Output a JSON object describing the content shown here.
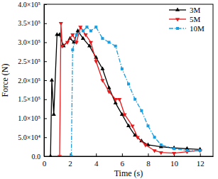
{
  "chart_data": {
    "type": "line",
    "x_label": "Time (s)",
    "y_label": "Force (N)",
    "xlim": [
      0,
      13
    ],
    "ylim": [
      0,
      400000
    ],
    "xticks": [
      0,
      2,
      4,
      6,
      8,
      10,
      12
    ],
    "yticks": [
      {
        "value": 0,
        "label": "0.0"
      },
      {
        "value": 50000,
        "label": "5.0×10⁴"
      },
      {
        "value": 100000,
        "label": "1.0×10⁵"
      },
      {
        "value": 150000,
        "label": "1.5×10⁵"
      },
      {
        "value": 200000,
        "label": "2.0×10⁵"
      },
      {
        "value": 250000,
        "label": "2.5×10⁵"
      },
      {
        "value": 300000,
        "label": "3.0×10⁵"
      },
      {
        "value": 350000,
        "label": "3.5×10⁵"
      },
      {
        "value": 400000,
        "label": "4.0×10⁵"
      }
    ],
    "grid": false,
    "legend": "upper right",
    "series": [
      {
        "name": "3M",
        "color": "#000000",
        "marker": "triangle",
        "line_style": "solid",
        "x": [
          0.5,
          0.6,
          0.75,
          1.0,
          1.2,
          1.5,
          2.0,
          2.3,
          2.6,
          3.0,
          3.5,
          4.0,
          4.5,
          5.0,
          5.5,
          6.0,
          6.5,
          7.0,
          7.5,
          8.0,
          9.0,
          10.0,
          11.0,
          12.0
        ],
        "values": [
          0,
          200000,
          110000,
          320000,
          320000,
          290000,
          310000,
          300000,
          330000,
          310000,
          290000,
          260000,
          230000,
          180000,
          140000,
          110000,
          80000,
          55000,
          40000,
          30000,
          25000,
          22000,
          20000,
          18000
        ]
      },
      {
        "name": "5M",
        "color": "#e8191b",
        "marker": "triangle-down",
        "line_style": "solid",
        "x": [
          1.2,
          1.3,
          1.4,
          1.8,
          2.2,
          2.5,
          2.8,
          3.2,
          3.6,
          4.0,
          4.5,
          5.0,
          5.5,
          5.8,
          6.2,
          6.8,
          7.2,
          7.8,
          8.5,
          9.0,
          10.0,
          11.0,
          12.0
        ],
        "values": [
          0,
          350000,
          290000,
          300000,
          320000,
          300000,
          340000,
          320000,
          300000,
          250000,
          200000,
          170000,
          150000,
          150000,
          110000,
          80000,
          50000,
          30000,
          15000,
          10000,
          8000,
          12000,
          15000
        ]
      },
      {
        "name": "10M",
        "color": "#1a9ee0",
        "marker": "square",
        "line_style": "dash-dot",
        "x": [
          2.1,
          2.2,
          2.5,
          3.0,
          3.3,
          3.6,
          4.0,
          4.5,
          5.0,
          5.5,
          6.0,
          6.5,
          7.0,
          7.5,
          8.0,
          8.5,
          9.0,
          10.0,
          11.0,
          12.0
        ],
        "values": [
          0,
          280000,
          320000,
          330000,
          340000,
          330000,
          340000,
          310000,
          300000,
          290000,
          230000,
          190000,
          150000,
          120000,
          80000,
          50000,
          30000,
          20000,
          15000,
          15000
        ]
      }
    ]
  }
}
